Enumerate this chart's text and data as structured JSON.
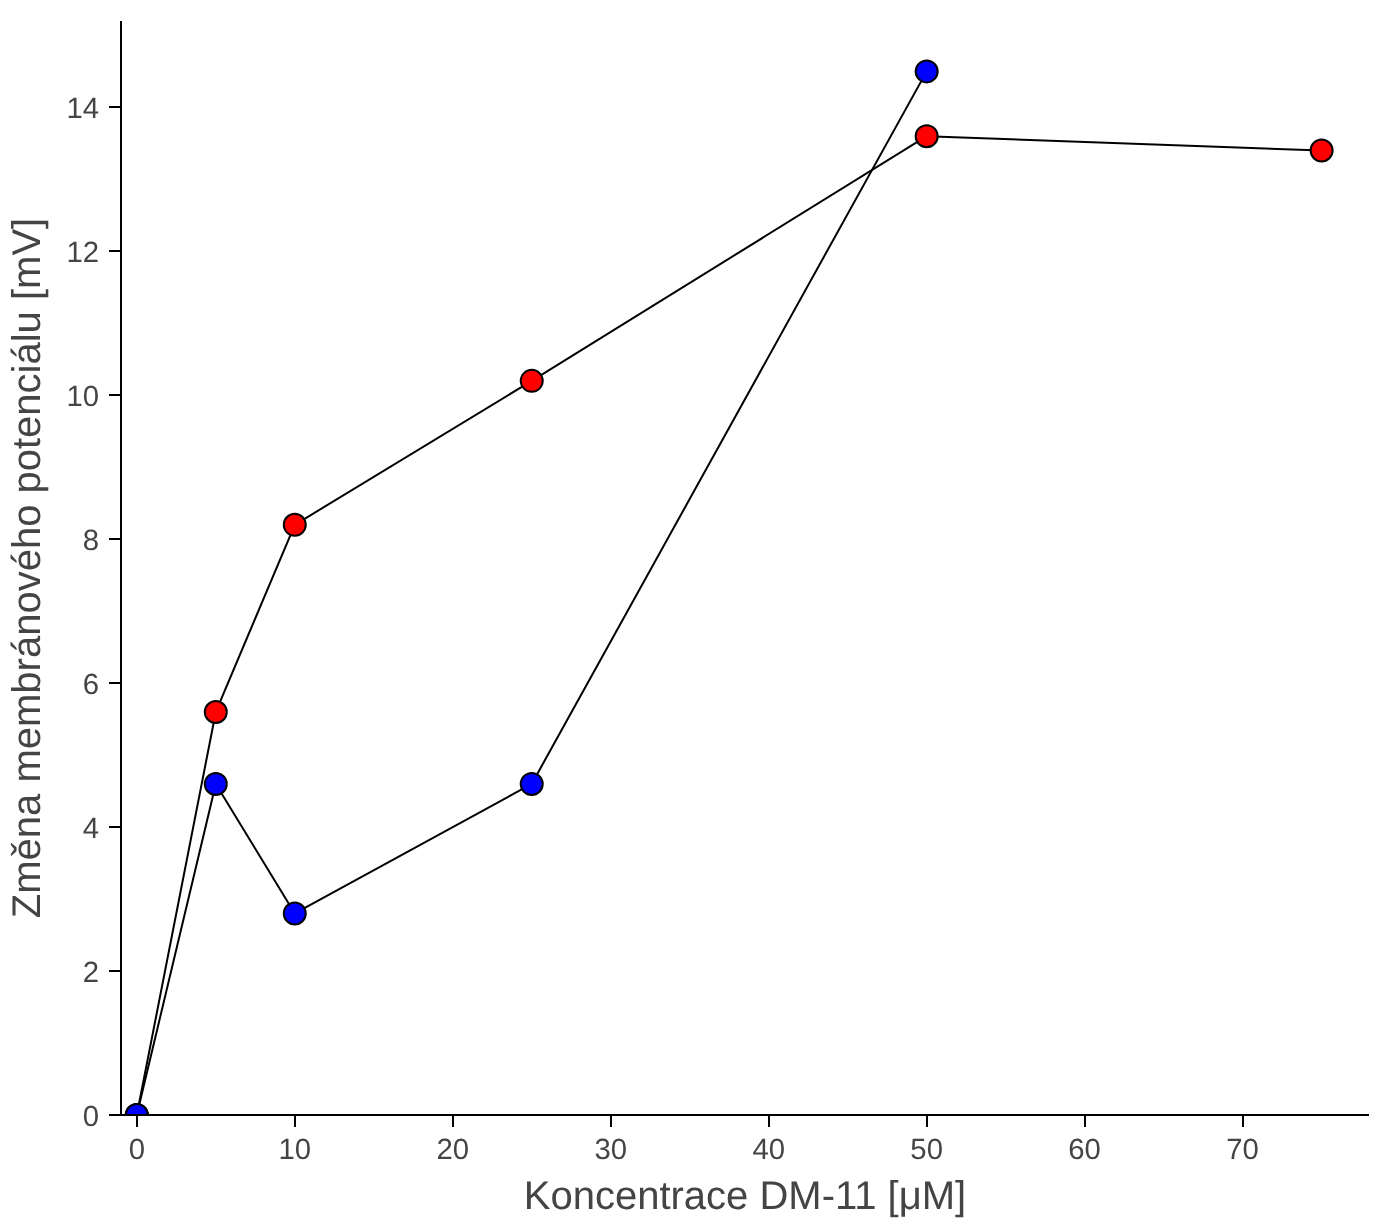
{
  "chart_data": {
    "type": "line",
    "xlabel": "Koncentrace DM-11 [μM]",
    "ylabel": "Změna membránového potenciálu [mV]",
    "xlim": [
      -1,
      78
    ],
    "ylim": [
      0,
      15.2
    ],
    "xticks": [
      0,
      10,
      20,
      30,
      40,
      50,
      60,
      70
    ],
    "yticks": [
      0,
      2,
      4,
      6,
      8,
      10,
      12,
      14
    ],
    "marker": "circle",
    "line_style": "solid",
    "grid": false,
    "series": [
      {
        "color": "#ff0000",
        "x": [
          0,
          5,
          10,
          25,
          50,
          75
        ],
        "values": [
          0,
          5.6,
          8.2,
          10.2,
          13.6,
          13.4
        ]
      },
      {
        "color": "#0000ff",
        "x": [
          0,
          5,
          10,
          25,
          50
        ],
        "values": [
          0,
          4.6,
          2.8,
          4.6,
          14.5
        ]
      }
    ]
  }
}
